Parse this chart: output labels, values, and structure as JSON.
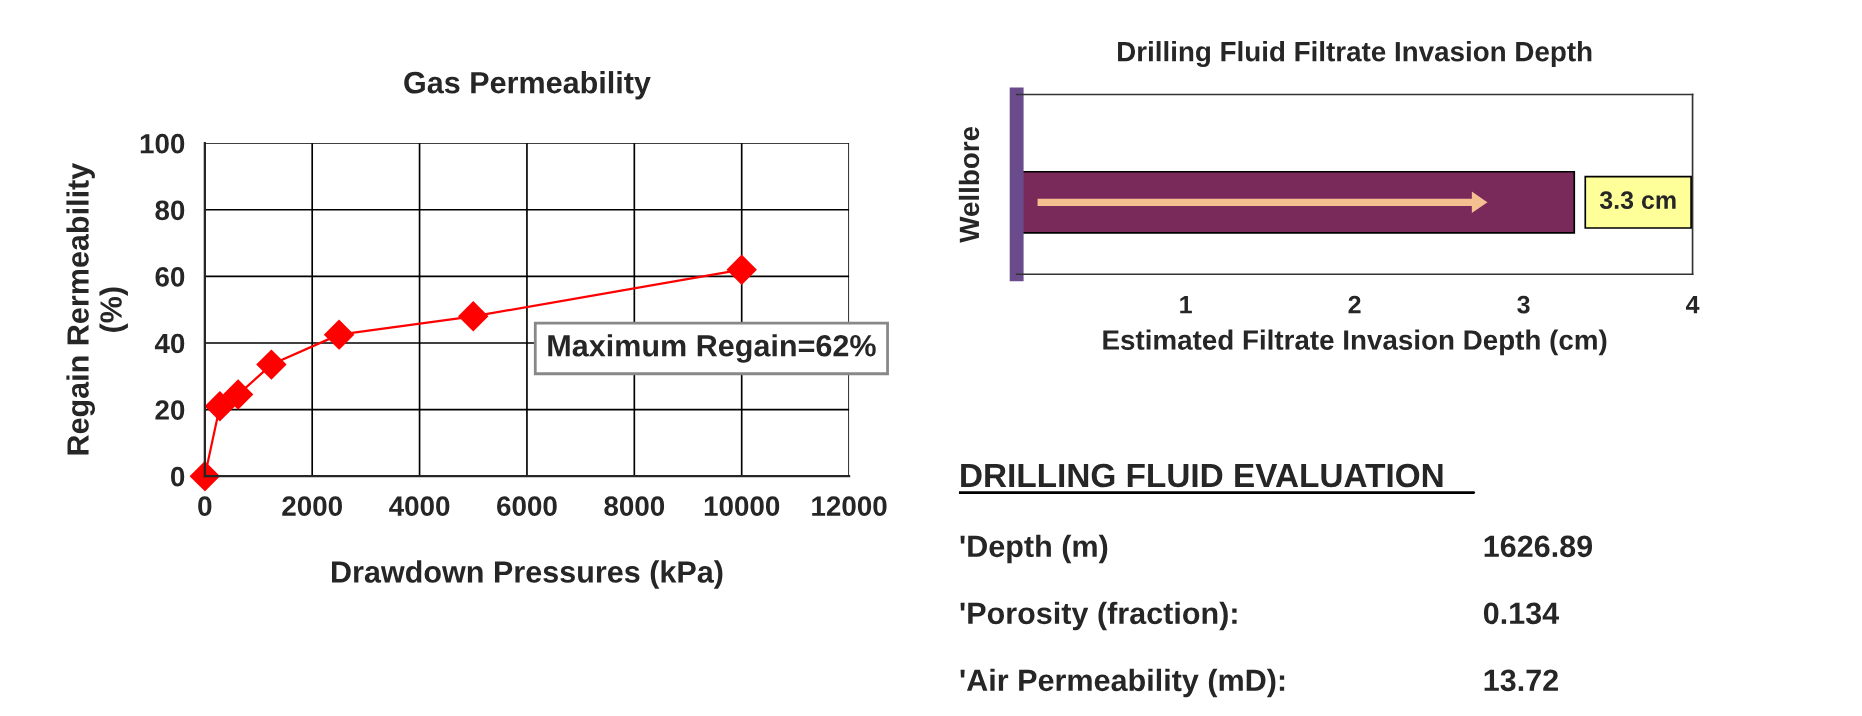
{
  "chart_data": [
    {
      "type": "line",
      "title": "Gas Permeability",
      "xlabel": "Drawdown Pressures (kPa)",
      "ylabel": "Regain Rermeability\n(%)",
      "x": [
        0,
        280,
        620,
        1240,
        2500,
        5000,
        10000
      ],
      "series": [
        {
          "color": "#ff0000",
          "values": [
            0,
            21,
            24.5,
            33.5,
            42.5,
            48,
            62
          ]
        }
      ],
      "xlim": [
        0,
        12000
      ],
      "xticks": [
        0,
        2000,
        4000,
        6000,
        8000,
        10000,
        12000
      ],
      "ylim": [
        0,
        100
      ],
      "yticks": [
        0,
        20,
        40,
        60,
        80,
        100
      ],
      "grid": true,
      "marker": "diamond",
      "line_style": "solid",
      "annotations": [
        "Maximum Regain=62%"
      ]
    },
    {
      "type": "bar",
      "orientation": "horizontal",
      "title": "Drilling Fluid Filtrate Invasion Depth",
      "xlabel": "Estimated Filtrate Invasion Depth (cm)",
      "ylabel": "Wellbore",
      "categories": [
        null
      ],
      "values": [
        3.3
      ],
      "color": "#7a2a5a",
      "value_labels": [
        "3.3 cm"
      ],
      "xlim": [
        0,
        4
      ],
      "xticks": [
        {
          "value": 0,
          "label": null
        },
        1,
        2,
        3,
        4
      ]
    },
    {
      "type": "other",
      "title": "DRILLING FLUID EVALUATION",
      "annotations": [
        "'Depth (m)",
        "1626.89",
        "'Porosity (fraction):",
        "0.134",
        "'Air Permeability (mD):",
        "13.72"
      ]
    }
  ]
}
